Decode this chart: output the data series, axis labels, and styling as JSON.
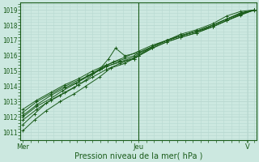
{
  "bg_color": "#cce8e0",
  "plot_bg_color": "#cce8e0",
  "grid_color": "#b8d8d0",
  "line_color": "#1a5c1a",
  "marker_color": "#1a5c1a",
  "axis_label_color": "#1a5c1a",
  "tick_label_color": "#1a5c1a",
  "ylim": [
    1010.5,
    1019.5
  ],
  "xlabel": "Pression niveau de la mer( hPa )",
  "xtick_labels": [
    "Mer",
    "Jeu",
    "V"
  ],
  "xtick_positions": [
    0.0,
    0.5,
    0.97
  ],
  "series": [
    {
      "x": [
        0.0,
        0.05,
        0.1,
        0.16,
        0.22,
        0.27,
        0.33,
        0.38,
        0.44,
        0.5,
        0.56,
        0.62,
        0.68,
        0.75,
        0.82,
        0.88,
        0.94,
        1.0
      ],
      "y": [
        1011.1,
        1011.8,
        1012.4,
        1013.0,
        1013.5,
        1014.0,
        1014.6,
        1015.2,
        1015.5,
        1016.0,
        1016.6,
        1017.0,
        1017.3,
        1017.6,
        1018.0,
        1018.4,
        1018.8,
        1018.95
      ]
    },
    {
      "x": [
        0.0,
        0.05,
        0.1,
        0.16,
        0.22,
        0.27,
        0.33,
        0.37,
        0.4,
        0.44,
        0.5,
        0.56,
        0.62,
        0.68,
        0.75,
        0.82,
        0.88,
        0.94,
        1.0
      ],
      "y": [
        1011.5,
        1012.2,
        1012.9,
        1013.4,
        1013.9,
        1014.4,
        1015.1,
        1015.8,
        1016.5,
        1016.0,
        1016.2,
        1016.6,
        1017.0,
        1017.4,
        1017.7,
        1018.1,
        1018.6,
        1018.9,
        1019.0
      ]
    },
    {
      "x": [
        0.0,
        0.06,
        0.12,
        0.17,
        0.23,
        0.28,
        0.34,
        0.39,
        0.44,
        0.5,
        0.56,
        0.62,
        0.68,
        0.75,
        0.82,
        0.88,
        0.94,
        1.0
      ],
      "y": [
        1012.0,
        1012.7,
        1013.2,
        1013.7,
        1014.2,
        1014.7,
        1015.2,
        1015.6,
        1015.9,
        1016.3,
        1016.7,
        1017.0,
        1017.3,
        1017.6,
        1018.0,
        1018.4,
        1018.8,
        1019.0
      ]
    },
    {
      "x": [
        0.0,
        0.06,
        0.12,
        0.18,
        0.24,
        0.3,
        0.36,
        0.42,
        0.48,
        0.5,
        0.56,
        0.62,
        0.68,
        0.75,
        0.82,
        0.88,
        0.94,
        1.0
      ],
      "y": [
        1012.3,
        1013.0,
        1013.5,
        1014.0,
        1014.4,
        1014.8,
        1015.3,
        1015.6,
        1015.8,
        1016.0,
        1016.5,
        1016.9,
        1017.2,
        1017.5,
        1017.9,
        1018.3,
        1018.7,
        1019.0
      ]
    },
    {
      "x": [
        0.0,
        0.06,
        0.12,
        0.18,
        0.24,
        0.3,
        0.36,
        0.42,
        0.48,
        0.5,
        0.56,
        0.62,
        0.68,
        0.75,
        0.82,
        0.88,
        0.94,
        1.0
      ],
      "y": [
        1012.5,
        1013.1,
        1013.6,
        1014.1,
        1014.5,
        1015.0,
        1015.4,
        1015.7,
        1016.0,
        1016.2,
        1016.6,
        1017.0,
        1017.3,
        1017.6,
        1018.0,
        1018.4,
        1018.75,
        1019.0
      ]
    },
    {
      "x": [
        0.0,
        0.06,
        0.12,
        0.18,
        0.24,
        0.3,
        0.36,
        0.42,
        0.48,
        0.5,
        0.56,
        0.62,
        0.68,
        0.75,
        0.82,
        0.88,
        0.94,
        1.0
      ],
      "y": [
        1012.1,
        1012.8,
        1013.4,
        1013.9,
        1014.3,
        1014.8,
        1015.3,
        1015.6,
        1015.9,
        1016.1,
        1016.6,
        1017.0,
        1017.3,
        1017.6,
        1017.9,
        1018.3,
        1018.7,
        1019.0
      ]
    },
    {
      "x": [
        0.0,
        0.06,
        0.12,
        0.18,
        0.24,
        0.3,
        0.36,
        0.42,
        0.48,
        0.5,
        0.56,
        0.62,
        0.68,
        0.75,
        0.82,
        0.88,
        0.94,
        1.0
      ],
      "y": [
        1011.8,
        1012.5,
        1013.1,
        1013.6,
        1014.1,
        1014.6,
        1015.1,
        1015.5,
        1015.8,
        1016.0,
        1016.5,
        1016.9,
        1017.2,
        1017.5,
        1017.9,
        1018.3,
        1018.65,
        1019.0
      ]
    }
  ],
  "vline_x": 0.5
}
